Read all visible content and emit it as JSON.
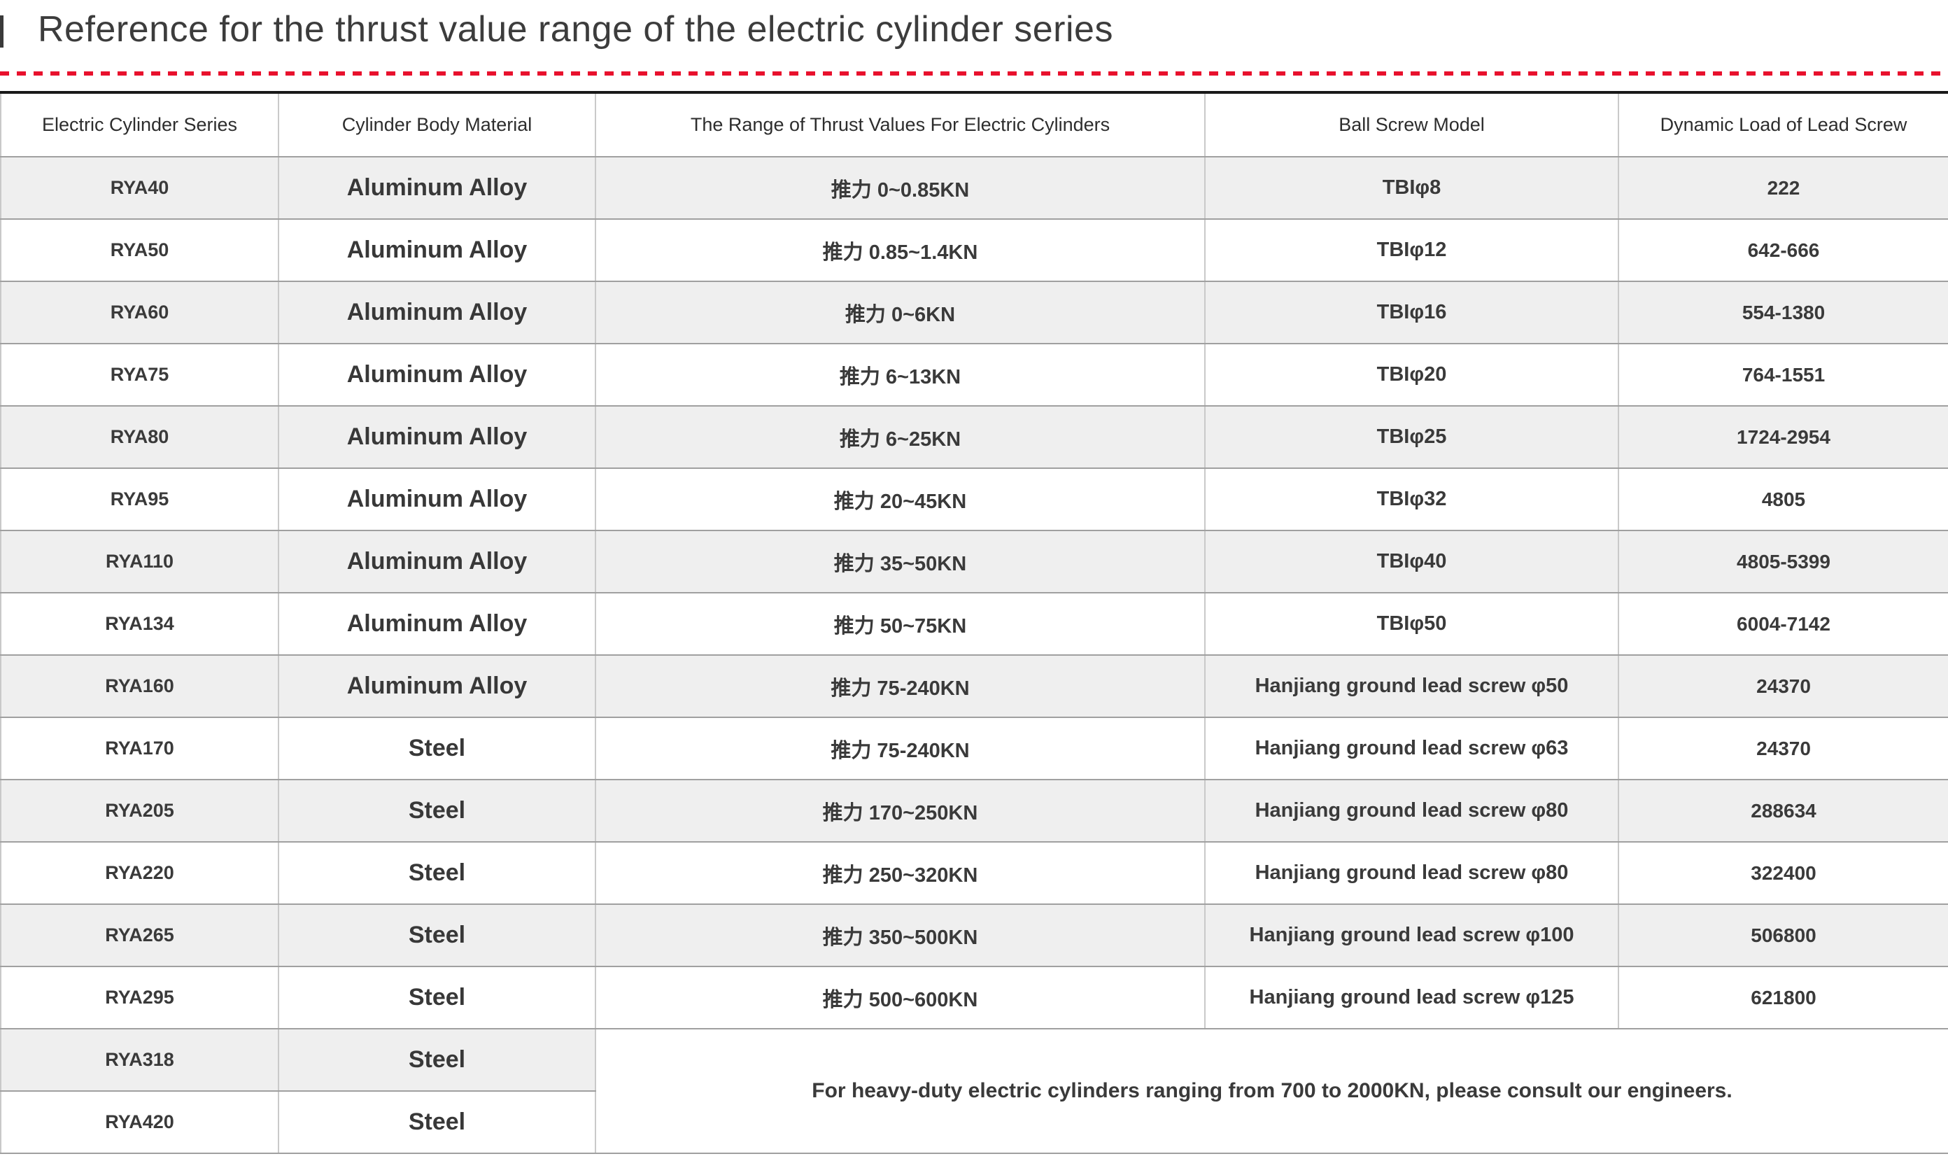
{
  "title": "Reference for the thrust value range of the electric cylinder series",
  "divider_color": "#e8112d",
  "colors": {
    "table_top_rule": "#191919",
    "row_alt_background": "#efefef",
    "horizontal_grid": "#a0a0a0",
    "vertical_grid": "#c9c9c9",
    "text": "#3a3a3a"
  },
  "table": {
    "columns": [
      "Electric Cylinder Series",
      "Cylinder Body Material",
      "The Range of Thrust Values For Electric Cylinders",
      "Ball Screw Model",
      "Dynamic Load of Lead Screw"
    ],
    "rows": [
      {
        "series": "RYA40",
        "material": "Aluminum Alloy",
        "thrust": "推力 0~0.85KN",
        "ball_screw": "TBIφ8",
        "dynamic_load": "222"
      },
      {
        "series": "RYA50",
        "material": "Aluminum Alloy",
        "thrust": "推力 0.85~1.4KN",
        "ball_screw": "TBIφ12",
        "dynamic_load": "642-666"
      },
      {
        "series": "RYA60",
        "material": "Aluminum Alloy",
        "thrust": "推力 0~6KN",
        "ball_screw": "TBIφ16",
        "dynamic_load": "554-1380"
      },
      {
        "series": "RYA75",
        "material": "Aluminum Alloy",
        "thrust": "推力 6~13KN",
        "ball_screw": "TBIφ20",
        "dynamic_load": "764-1551"
      },
      {
        "series": "RYA80",
        "material": "Aluminum Alloy",
        "thrust": "推力 6~25KN",
        "ball_screw": "TBIφ25",
        "dynamic_load": "1724-2954"
      },
      {
        "series": "RYA95",
        "material": "Aluminum Alloy",
        "thrust": "推力 20~45KN",
        "ball_screw": "TBIφ32",
        "dynamic_load": "4805"
      },
      {
        "series": "RYA110",
        "material": "Aluminum Alloy",
        "thrust": "推力 35~50KN",
        "ball_screw": "TBIφ40",
        "dynamic_load": "4805-5399"
      },
      {
        "series": "RYA134",
        "material": "Aluminum Alloy",
        "thrust": "推力 50~75KN",
        "ball_screw": "TBIφ50",
        "dynamic_load": "6004-7142"
      },
      {
        "series": "RYA160",
        "material": "Aluminum Alloy",
        "thrust": "推力 75-240KN",
        "ball_screw": "Hanjiang ground lead screw φ50",
        "dynamic_load": "24370"
      },
      {
        "series": "RYA170",
        "material": "Steel",
        "thrust": "推力 75-240KN",
        "ball_screw": "Hanjiang ground lead screw φ63",
        "dynamic_load": "24370"
      },
      {
        "series": "RYA205",
        "material": "Steel",
        "thrust": "推力 170~250KN",
        "ball_screw": "Hanjiang ground lead screw φ80",
        "dynamic_load": "288634"
      },
      {
        "series": "RYA220",
        "material": "Steel",
        "thrust": "推力 250~320KN",
        "ball_screw": "Hanjiang ground lead screw φ80",
        "dynamic_load": "322400"
      },
      {
        "series": "RYA265",
        "material": "Steel",
        "thrust": "推力 350~500KN",
        "ball_screw": "Hanjiang ground lead screw φ100",
        "dynamic_load": "506800"
      },
      {
        "series": "RYA295",
        "material": "Steel",
        "thrust": "推力 500~600KN",
        "ball_screw": "Hanjiang ground lead screw φ125",
        "dynamic_load": "621800"
      },
      {
        "series": "RYA318",
        "material": "Steel"
      },
      {
        "series": "RYA420",
        "material": "Steel"
      }
    ],
    "note": "For heavy-duty electric cylinders ranging from 700 to 2000KN, please consult our engineers."
  }
}
